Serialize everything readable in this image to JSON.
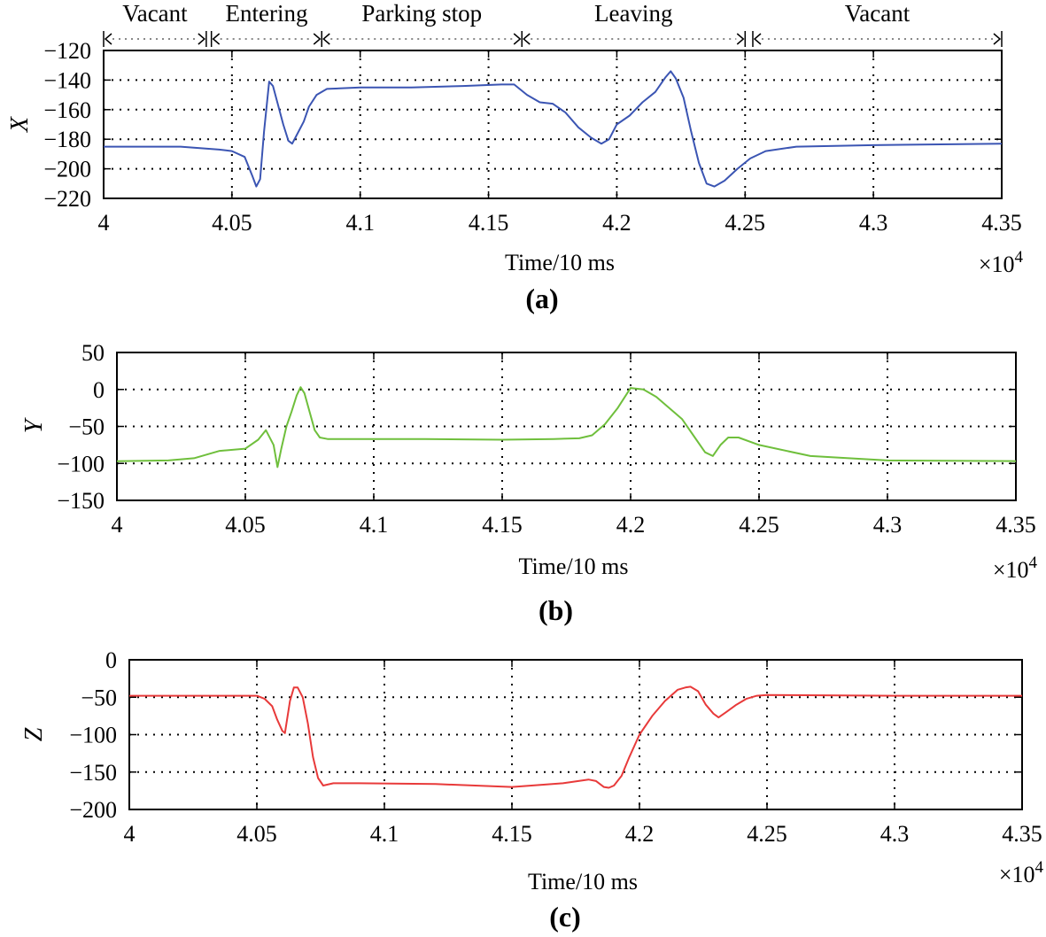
{
  "chart_data": [
    {
      "type": "line",
      "panel_label": "(a)",
      "ylabel": "X",
      "xlabel": "Time/10 ms",
      "x_multiplier": "×10",
      "x_exponent": "4",
      "xlim": [
        4.0,
        4.35
      ],
      "ylim": [
        -220,
        -120
      ],
      "xticks": [
        "4",
        "4.05",
        "4.1",
        "4.15",
        "4.2",
        "4.25",
        "4.3",
        "4.35"
      ],
      "yticks": [
        "-120",
        "-140",
        "-160",
        "-180",
        "-200",
        "-220"
      ],
      "grid": true,
      "color": "#3b55b3",
      "phases": [
        {
          "label": "Vacant",
          "start": 4.0,
          "end": 4.04
        },
        {
          "label": "Entering",
          "start": 4.042,
          "end": 4.085
        },
        {
          "label": "Parking stop",
          "start": 4.085,
          "end": 4.163
        },
        {
          "label": "Leaving",
          "start": 4.163,
          "end": 4.25
        },
        {
          "label": "Vacant",
          "start": 4.253,
          "end": 4.35
        }
      ],
      "series": [
        {
          "name": "X",
          "x": [
            4.0,
            4.02,
            4.03,
            4.045,
            4.05,
            4.055,
            4.058,
            4.0595,
            4.061,
            4.0625,
            4.0645,
            4.066,
            4.068,
            4.07,
            4.072,
            4.0735,
            4.075,
            4.078,
            4.08,
            4.083,
            4.087,
            4.1,
            4.12,
            4.14,
            4.155,
            4.16,
            4.165,
            4.17,
            4.175,
            4.18,
            4.185,
            4.19,
            4.194,
            4.197,
            4.2,
            4.205,
            4.21,
            4.215,
            4.219,
            4.221,
            4.223,
            4.226,
            4.229,
            4.232,
            4.235,
            4.238,
            4.242,
            4.247,
            4.252,
            4.258,
            4.27,
            4.3,
            4.35
          ],
          "y": [
            -185,
            -185,
            -185,
            -187,
            -188,
            -192,
            -205,
            -212,
            -207,
            -175,
            -141,
            -144,
            -157,
            -170,
            -181,
            -183,
            -178,
            -168,
            -158,
            -150,
            -146,
            -145,
            -145,
            -144,
            -143,
            -143,
            -150,
            -155,
            -156,
            -162,
            -172,
            -179,
            -183,
            -180,
            -170,
            -164,
            -155,
            -148,
            -138,
            -134,
            -139,
            -152,
            -175,
            -196,
            -210,
            -212,
            -208,
            -200,
            -193,
            -188,
            -185,
            -184,
            -183
          ]
        }
      ]
    },
    {
      "type": "line",
      "panel_label": "(b)",
      "ylabel": "Y",
      "xlabel": "Time/10 ms",
      "x_multiplier": "×10",
      "x_exponent": "4",
      "xlim": [
        4.0,
        4.35
      ],
      "ylim": [
        -150,
        50
      ],
      "xticks": [
        "4",
        "4.05",
        "4.1",
        "4.15",
        "4.2",
        "4.25",
        "4.3",
        "4.35"
      ],
      "yticks": [
        "50",
        "0",
        "-50",
        "-100",
        "-150"
      ],
      "grid": true,
      "color": "#6fbf3c",
      "series": [
        {
          "name": "Y",
          "x": [
            4.0,
            4.02,
            4.03,
            4.04,
            4.05,
            4.055,
            4.058,
            4.061,
            4.0625,
            4.064,
            4.066,
            4.068,
            4.07,
            4.0715,
            4.073,
            4.075,
            4.077,
            4.079,
            4.082,
            4.1,
            4.12,
            4.15,
            4.17,
            4.18,
            4.185,
            4.19,
            4.195,
            4.2,
            4.205,
            4.21,
            4.215,
            4.22,
            4.225,
            4.229,
            4.232,
            4.235,
            4.238,
            4.242,
            4.25,
            4.27,
            4.3,
            4.35
          ],
          "y": [
            -97,
            -96,
            -93,
            -83,
            -80,
            -68,
            -55,
            -75,
            -105,
            -80,
            -50,
            -30,
            -8,
            3,
            -5,
            -30,
            -55,
            -65,
            -67,
            -67,
            -67,
            -68,
            -67,
            -66,
            -62,
            -47,
            -25,
            2,
            0,
            -10,
            -25,
            -40,
            -65,
            -85,
            -90,
            -75,
            -65,
            -65,
            -75,
            -90,
            -96,
            -97
          ]
        }
      ]
    },
    {
      "type": "line",
      "panel_label": "(c)",
      "ylabel": "Z",
      "xlabel": "Time/10 ms",
      "x_multiplier": "×10",
      "x_exponent": "4",
      "xlim": [
        4.0,
        4.35
      ],
      "ylim": [
        -200,
        0
      ],
      "xticks": [
        "4",
        "4.05",
        "4.1",
        "4.15",
        "4.2",
        "4.25",
        "4.3",
        "4.35"
      ],
      "yticks": [
        "0",
        "-50",
        "-100",
        "-150",
        "-200"
      ],
      "grid": true,
      "color": "#e83a3a",
      "series": [
        {
          "name": "Z",
          "x": [
            4.0,
            4.05,
            4.053,
            4.056,
            4.058,
            4.06,
            4.061,
            4.063,
            4.0645,
            4.066,
            4.068,
            4.07,
            4.072,
            4.074,
            4.076,
            4.08,
            4.09,
            4.12,
            4.15,
            4.17,
            4.18,
            4.183,
            4.186,
            4.188,
            4.19,
            4.193,
            4.196,
            4.2,
            4.205,
            4.21,
            4.215,
            4.218,
            4.22,
            4.223,
            4.226,
            4.229,
            4.231,
            4.234,
            4.238,
            4.242,
            4.246,
            4.25,
            4.3,
            4.35
          ],
          "y": [
            -48,
            -48,
            -52,
            -62,
            -80,
            -95,
            -98,
            -55,
            -37,
            -37,
            -50,
            -85,
            -130,
            -158,
            -168,
            -165,
            -165,
            -166,
            -170,
            -165,
            -160,
            -162,
            -170,
            -171,
            -168,
            -155,
            -130,
            -100,
            -75,
            -55,
            -40,
            -37,
            -36,
            -42,
            -60,
            -72,
            -77,
            -70,
            -60,
            -52,
            -48,
            -47,
            -48,
            -48
          ]
        }
      ]
    }
  ]
}
